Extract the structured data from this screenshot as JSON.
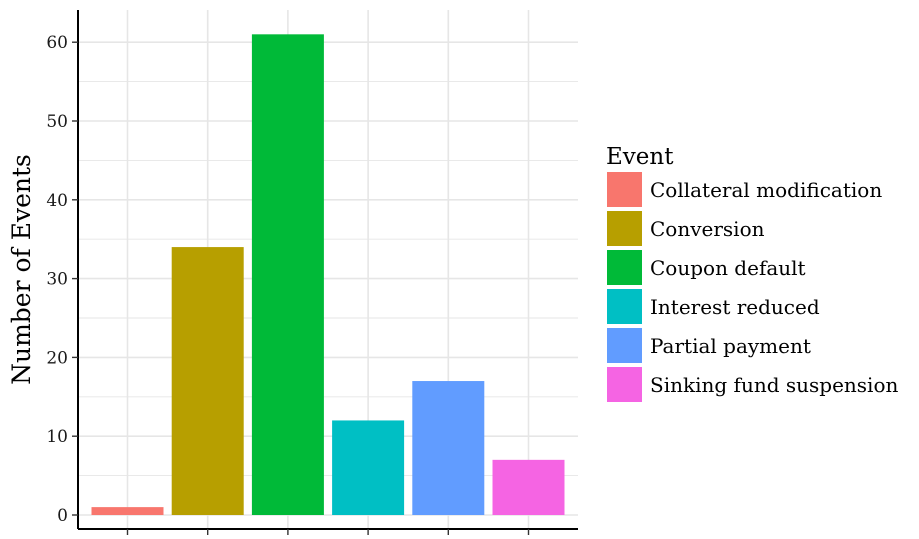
{
  "chart_data": {
    "type": "bar",
    "title": "",
    "xlabel": "",
    "ylabel": "Number of Events",
    "ylim": [
      0,
      64
    ],
    "yticks": [
      0,
      10,
      20,
      30,
      40,
      50,
      60
    ],
    "grid": true,
    "legend_position": "right",
    "legend_title": "Event",
    "categories": [
      "Collateral modification",
      "Conversion",
      "Coupon default",
      "Interest reduced",
      "Partial payment",
      "Sinking fund suspension"
    ],
    "values": [
      1,
      34,
      61,
      12,
      17,
      7
    ],
    "colors": [
      "#F8766D",
      "#B79F00",
      "#00BA38",
      "#00BFC4",
      "#619CFF",
      "#F564E3"
    ],
    "gridline_color": "#e6e6e6",
    "axis_color": "#000000"
  }
}
